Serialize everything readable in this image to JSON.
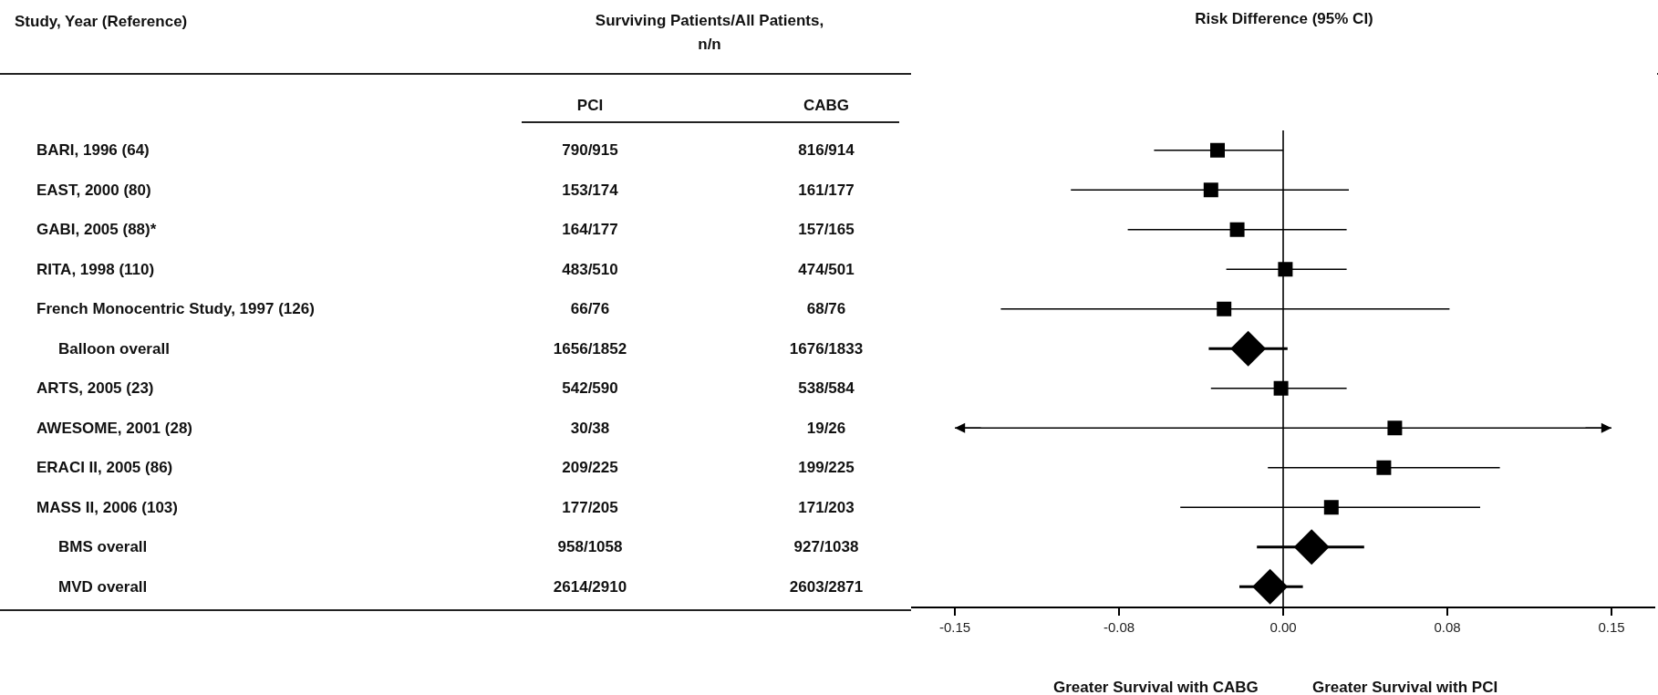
{
  "chart_data": [
    {
      "type": "other",
      "title": "Surviving Patients/All Patients, n/n",
      "ylabel": "Study, Year (Reference)",
      "categories": [
        "BARI, 1996 (64)",
        "EAST, 2000 (80)",
        "GABI, 2005 (88)*",
        "RITA, 1998 (110)",
        "French Monocentric Study, 1997 (126)",
        "Balloon overall",
        "ARTS, 2005 (23)",
        "AWESOME, 2001 (28)",
        "ERACI II, 2005 (86)",
        "MASS II, 2006 (103)",
        "BMS overall",
        "MVD overall"
      ],
      "series": [
        {
          "name": "PCI",
          "values": [
            null,
            null,
            null,
            null,
            null,
            null,
            null,
            null,
            null,
            null,
            null,
            null
          ],
          "value_labels": [
            "790/915",
            "153/174",
            "164/177",
            "483/510",
            "66/76",
            "1656/1852",
            "542/590",
            "30/38",
            "209/225",
            "177/205",
            "958/1058",
            "2614/2910"
          ]
        },
        {
          "name": "CABG",
          "values": [
            null,
            null,
            null,
            null,
            null,
            null,
            null,
            null,
            null,
            null,
            null,
            null
          ],
          "value_labels": [
            "816/914",
            "161/177",
            "157/165",
            "474/501",
            "68/76",
            "1676/1833",
            "538/584",
            "19/26",
            "199/225",
            "171/203",
            "927/1038",
            "2603/2871"
          ]
        }
      ]
    },
    {
      "type": "scatter",
      "title": "Risk Difference (95% CI)",
      "orientation": "horizontal",
      "categories": [
        null,
        null,
        null,
        null,
        null,
        null,
        null,
        null,
        null,
        null,
        null,
        null
      ],
      "series": [
        {
          "marker": "square",
          "color": "#000000",
          "values": [
            -0.03,
            -0.033,
            -0.021,
            0.001,
            -0.027,
            null,
            -0.001,
            0.051,
            0.046,
            0.022,
            null,
            null
          ],
          "errors": [
            [
              -0.059,
              0.0
            ],
            [
              -0.097,
              0.03
            ],
            [
              -0.071,
              0.029
            ],
            [
              -0.026,
              0.029
            ],
            [
              -0.129,
              0.076
            ],
            null,
            [
              -0.033,
              0.029
            ],
            [
              -0.15,
              0.15
            ],
            [
              -0.007,
              0.099
            ],
            [
              -0.047,
              0.09
            ],
            null,
            null
          ]
        },
        {
          "marker": "diamond",
          "color": "#000000",
          "values": [
            null,
            null,
            null,
            null,
            null,
            -0.016,
            null,
            null,
            null,
            null,
            0.013,
            -0.006
          ],
          "errors": [
            null,
            null,
            null,
            null,
            null,
            [
              -0.034,
              0.002
            ],
            null,
            null,
            null,
            null,
            [
              -0.012,
              0.037
            ],
            [
              -0.02,
              0.009
            ]
          ]
        }
      ],
      "xlim": [
        -0.17,
        0.17
      ],
      "xticks": [
        -0.15,
        {
          "value": -0.075,
          "label": "-0.08"
        },
        {
          "value": 0,
          "label": "0.00"
        },
        {
          "value": 0.075,
          "label": "0.08"
        },
        0.15
      ],
      "ref_lines": [
        {
          "axis": "x",
          "value": 0,
          "color": "#000000"
        }
      ],
      "annotations": [
        "Greater Survival with CABG",
        "Greater Survival with PCI"
      ],
      "tick_labels": "x"
    }
  ]
}
